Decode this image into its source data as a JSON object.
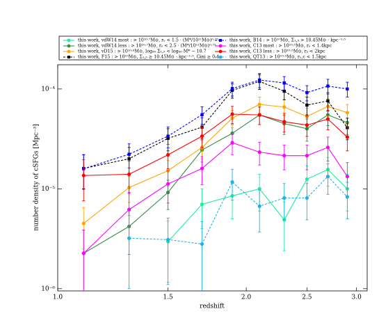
{
  "chart_data": {
    "type": "line",
    "x_label": "redshift",
    "y_label": "number density of cSFGs [Mpc⁻³]",
    "x": [
      1.1,
      1.3,
      1.5,
      1.7,
      1.9,
      2.1,
      2.3,
      2.5,
      2.7,
      2.9
    ],
    "xlim": [
      1.0,
      3.12
    ],
    "xticks": [
      {
        "value": 1.0,
        "label": "1.0"
      },
      1.5,
      {
        "value": 2.0,
        "label": "2.0"
      },
      2.5,
      {
        "value": 3.0,
        "label": "3.0"
      }
    ],
    "ylim": [
      9.5e-07,
      0.000175
    ],
    "yticks": [
      {
        "value": 1e-06,
        "label": "10⁻⁶"
      },
      {
        "value": 1e-05,
        "label": "10⁻⁵"
      },
      {
        "value": 0.0001,
        "label": "10⁻⁴"
      }
    ],
    "xscale": "log",
    "yscale": "log",
    "legend_columns": 2,
    "series": [
      {
        "name": "this work, vdW14 most : > 10¹⁰·⁷M⊙, rₑ < 1.5 · (M*/10¹¹M⊙)⁰·⁷⁵",
        "color": "#1aee99",
        "dashed": false,
        "marker": "circle",
        "values": [
          null,
          null,
          2.96e-06,
          7e-06,
          8.5e-06,
          1e-05,
          4.9e-06,
          1.25e-05,
          1.56e-05,
          1e-05
        ],
        "errors": [
          null,
          null,
          1.8e-06,
          3e-06,
          3.5e-06,
          4e-06,
          2.5e-06,
          4.5e-06,
          5e-06,
          4e-06
        ]
      },
      {
        "name": "this work, vdW14 less : > 10¹⁰·⁷M⊙, rₑ < 2.5 · (M*/10¹¹M⊙)⁰·⁷⁵",
        "color": "#3a8a4a",
        "dashed": false,
        "marker": "circle",
        "values": [
          2.26e-06,
          4.2e-06,
          9.2e-06,
          2.45e-05,
          3.6e-05,
          5.5e-05,
          4.5e-05,
          4e-05,
          5.5e-05,
          4.6e-05
        ],
        "errors": [
          1.6e-06,
          2e-06,
          3e-06,
          6e-06,
          8e-06,
          1.1e-05,
          1e-05,
          1e-05,
          1.2e-05,
          1.1e-05
        ]
      },
      {
        "name": "this work, vD15 : > 10¹⁰·⁶M⊙, log₆₀ Σ₁,₅ < log₆₀ M* − 10.7",
        "color": "#ffa500",
        "dashed": false,
        "marker": "circle",
        "values": [
          4.5e-06,
          1.03e-05,
          1.52e-05,
          2.6e-05,
          5.1e-05,
          7e-05,
          6.6e-05,
          5.3e-05,
          6.7e-05,
          5.8e-05
        ],
        "errors": [
          2e-06,
          3e-06,
          4e-06,
          6e-06,
          1e-05,
          1.3e-05,
          1.2e-05,
          1.1e-05,
          1.3e-05,
          1.2e-05
        ]
      },
      {
        "name": "this work, F15 : > 10¹⁰M⊙, Σ₁,₅ ≥ 10.45M⊙ · kpc⁻¹·⁵, Gini ≥ 0.4",
        "color": "#000000",
        "dashed": true,
        "marker": "square",
        "values": [
          1.6e-05,
          2e-05,
          3.2e-05,
          4.15e-05,
          9.7e-05,
          0.000119,
          9.5e-05,
          6.9e-05,
          7.6e-05,
          4.1e-05
        ],
        "errors": [
          6e-06,
          6e-06,
          8e-06,
          1e-05,
          1.6e-05,
          2e-05,
          1.7e-05,
          1.4e-05,
          1.6e-05,
          1e-05
        ]
      },
      {
        "name": "this work, B14 : > 10¹⁰M⊙, Σ₁,₅ > 10.45M⊙ · kpc⁻¹·⁵",
        "color": "#0000ff",
        "dashed": true,
        "marker": "square",
        "values": [
          1.59e-05,
          2.22e-05,
          3.37e-05,
          5.53e-05,
          0.000101,
          0.000123,
          0.000115,
          9.2e-05,
          0.000107,
          0.0001
        ],
        "errors": [
          6e-06,
          6e-06,
          8e-06,
          1.1e-05,
          1.6e-05,
          2e-05,
          1.8e-05,
          1.6e-05,
          1.8e-05,
          1.7e-05
        ]
      },
      {
        "name": "this work, C13 most : > 10¹⁰·⁵M⊙, rₑ < 1.4kpc",
        "color": "#ff00ff",
        "dashed": false,
        "marker": "circle",
        "values": [
          2.26e-06,
          6.2e-06,
          1.12e-05,
          1.6e-05,
          2.9e-05,
          2.33e-05,
          2.15e-05,
          2.15e-05,
          2.6e-05,
          1.33e-05
        ],
        "errors": [
          1.6e-06,
          3e-06,
          4e-06,
          5e-06,
          7e-06,
          6e-06,
          6e-06,
          6e-06,
          7e-06,
          5e-06
        ]
      },
      {
        "name": "this work, C13 less : > 10¹⁰·⁵M⊙, rₑ < 2kpc",
        "color": "#ff0000",
        "dashed": false,
        "marker": "circle",
        "values": [
          1.36e-05,
          1.4e-05,
          2.19e-05,
          3.37e-05,
          5.6e-05,
          5.5e-05,
          4.7e-05,
          4.35e-05,
          5e-05,
          3.3e-05
        ],
        "errors": [
          6e-06,
          5e-06,
          6e-06,
          8e-06,
          1.1e-05,
          1.1e-05,
          1e-05,
          1e-05,
          1.1e-05,
          9e-06
        ]
      },
      {
        "name": "this work, QT13 : > 10¹⁰·⁹M⊙, rₑ,c < 1.5kpc",
        "color": "#1ab2e8",
        "dashed": true,
        "marker": "circle",
        "values": [
          null,
          3.2e-06,
          3.1e-06,
          2.8e-06,
          1.17e-05,
          6.7e-06,
          8.1e-06,
          8.1e-06,
          1.33e-05,
          8.3e-06
        ],
        "errors": [
          null,
          2.2e-06,
          2e-06,
          1.9e-06,
          4e-06,
          3e-06,
          3.2e-06,
          3.2e-06,
          4.5e-06,
          3.3e-06
        ]
      }
    ]
  }
}
